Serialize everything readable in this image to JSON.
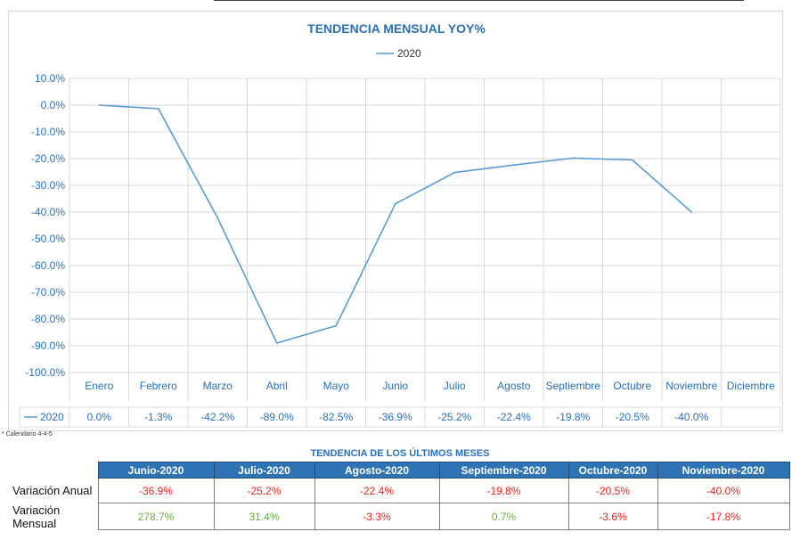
{
  "chart_data": {
    "type": "line",
    "title": "TENDENCIA MENSUAL YOY%",
    "legend_position": "top",
    "categories": [
      "Enero",
      "Febrero",
      "Marzo",
      "Abril",
      "Mayo",
      "Junio",
      "Julio",
      "Agosto",
      "Septiembre",
      "Octubre",
      "Noviembre",
      "Diciembre"
    ],
    "series": [
      {
        "name": "2020",
        "color": "#5b9bd5",
        "values": [
          0.0,
          -1.3,
          -42.2,
          -89.0,
          -82.5,
          -36.9,
          -25.2,
          -22.4,
          -19.8,
          -20.5,
          -40.0,
          null
        ],
        "value_labels": [
          "0.0%",
          "-1.3%",
          "-42.2%",
          "-89.0%",
          "-82.5%",
          "-36.9%",
          "-25.2%",
          "-22.4%",
          "-19.8%",
          "-20.5%",
          "-40.0%",
          ""
        ]
      }
    ],
    "ylim": [
      -100,
      10
    ],
    "yticks": [
      10,
      0,
      -10,
      -20,
      -30,
      -40,
      -50,
      -60,
      -70,
      -80,
      -90,
      -100
    ],
    "ytick_labels": [
      "10.0%",
      "0.0%",
      "-10.0%",
      "-20.0%",
      "-30.0%",
      "-40.0%",
      "-50.0%",
      "-60.0%",
      "-70.0%",
      "-80.0%",
      "-90.0%",
      "-100.0%"
    ],
    "grid": true,
    "data_table": true
  },
  "footnote": "* Calendario 4-4-5",
  "summary": {
    "title": "TENDENCIA DE LOS ÚLTIMOS MESES",
    "months": [
      "Junio-2020",
      "Julio-2020",
      "Agosto-2020",
      "Septiembre-2020",
      "Octubre-2020",
      "Noviembre-2020"
    ],
    "rows": [
      {
        "label": "Variación Anual",
        "values": [
          "-36.9%",
          "-25.2%",
          "-22.4%",
          "-19.8%",
          "-20.5%",
          "-40.0%"
        ],
        "tones": [
          "neg",
          "neg",
          "neg",
          "neg",
          "neg",
          "neg"
        ]
      },
      {
        "label": "Variación Mensual",
        "values": [
          "278.7%",
          "31.4%",
          "-3.3%",
          "0.7%",
          "-3.6%",
          "-17.8%"
        ],
        "tones": [
          "pos",
          "pos",
          "neg",
          "pos",
          "neg",
          "neg"
        ]
      }
    ]
  },
  "colors": {
    "title": "#2a6fb6",
    "axis_text": "#2a6fb6",
    "line": "#5b9bd5",
    "header_bg": "#2e74b5",
    "negative": "#e8221f",
    "positive": "#6aab3c",
    "grid": "#d9d9d9"
  }
}
